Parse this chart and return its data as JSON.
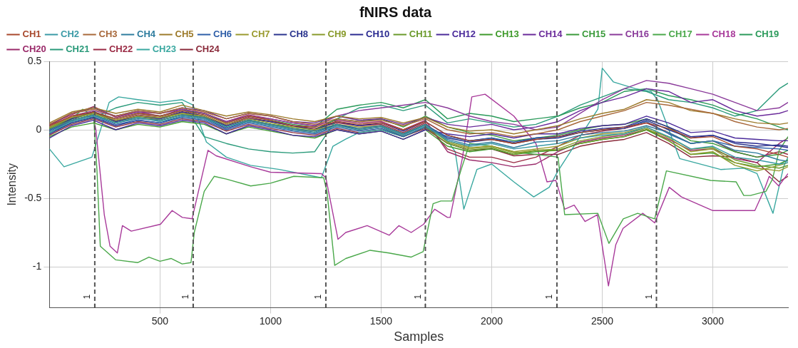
{
  "chart_data": {
    "type": "line",
    "title": "fNIRS data",
    "xlabel": "Samples",
    "ylabel": "Intensity",
    "x": [
      0,
      100,
      200,
      300,
      400,
      500,
      600,
      700,
      800,
      900,
      1000,
      1100,
      1200,
      1300,
      1400,
      1500,
      1600,
      1700,
      1800,
      1900,
      2000,
      2100,
      2200,
      2300,
      2400,
      2500,
      2600,
      2700,
      2800,
      2900,
      3000,
      3100,
      3200,
      3300,
      3340
    ],
    "xlim": [
      0,
      3340
    ],
    "xticks": [
      500,
      1000,
      1500,
      2000,
      2500,
      3000
    ],
    "ylim": [
      -1.3,
      0.5
    ],
    "yticks": [
      -1,
      -0.5,
      0,
      0.5
    ],
    "grid": true,
    "legend": "top",
    "marker": "none",
    "line_style": "solid",
    "ref_lines": [
      {
        "axis": "x",
        "value": 205,
        "color": "#555555",
        "line_style": "dashed"
      },
      {
        "axis": "x",
        "value": 650,
        "color": "#555555",
        "line_style": "dashed"
      },
      {
        "axis": "x",
        "value": 1250,
        "color": "#555555",
        "line_style": "dashed"
      },
      {
        "axis": "x",
        "value": 1700,
        "color": "#555555",
        "line_style": "dashed"
      },
      {
        "axis": "x",
        "value": 2295,
        "color": "#555555",
        "line_style": "dashed"
      },
      {
        "axis": "x",
        "value": 2745,
        "color": "#555555",
        "line_style": "dashed"
      }
    ],
    "annotations": [
      {
        "text": "1",
        "x": 205,
        "y": -1.22
      },
      {
        "text": "1",
        "x": 650,
        "y": -1.22
      },
      {
        "text": "1",
        "x": 1250,
        "y": -1.22
      },
      {
        "text": "1",
        "x": 1700,
        "y": -1.22
      },
      {
        "text": "1",
        "x": 2295,
        "y": -1.22
      },
      {
        "text": "1",
        "x": 2745,
        "y": -1.22
      }
    ],
    "series": [
      {
        "name": "CH1",
        "color": "#a8482c",
        "values": [
          0.03,
          0.1,
          0.13,
          0.08,
          0.12,
          0.1,
          0.14,
          0.11,
          0.05,
          0.1,
          0.07,
          0.03,
          0.02,
          0.06,
          0.04,
          0.05,
          0.0,
          0.06,
          -0.04,
          -0.08,
          -0.07,
          -0.1,
          -0.07,
          -0.05,
          -0.02,
          0.0,
          0.02,
          0.05,
          0.01,
          -0.06,
          -0.05,
          -0.12,
          -0.14,
          -0.18,
          -0.2
        ]
      },
      {
        "name": "CH2",
        "color": "#3a9aa6",
        "values": [
          -0.02,
          0.06,
          0.1,
          0.05,
          0.09,
          0.06,
          0.1,
          0.08,
          0.02,
          0.06,
          0.03,
          0.0,
          -0.02,
          0.03,
          0.0,
          0.02,
          -0.04,
          0.03,
          -0.08,
          -0.12,
          -0.1,
          -0.14,
          -0.12,
          -0.1,
          -0.06,
          -0.04,
          -0.03,
          0.02,
          -0.05,
          -0.14,
          -0.12,
          -0.2,
          -0.22,
          -0.25,
          -0.24
        ]
      },
      {
        "name": "CH3",
        "color": "#a8683a",
        "values": [
          0.04,
          0.12,
          0.15,
          0.1,
          0.14,
          0.12,
          0.16,
          0.13,
          0.08,
          0.12,
          0.1,
          0.06,
          0.04,
          0.08,
          0.06,
          0.07,
          0.03,
          0.08,
          0.0,
          -0.03,
          -0.02,
          -0.05,
          -0.03,
          0.0,
          0.06,
          0.1,
          0.14,
          0.2,
          0.18,
          0.15,
          0.12,
          0.06,
          0.02,
          0.0,
          0.01
        ]
      },
      {
        "name": "CH4",
        "color": "#2e7c9e",
        "values": [
          0.0,
          0.07,
          0.11,
          0.05,
          0.08,
          0.07,
          0.11,
          0.09,
          0.02,
          0.07,
          0.04,
          0.01,
          -0.01,
          0.04,
          0.01,
          0.03,
          -0.03,
          0.04,
          -0.07,
          -0.11,
          -0.09,
          -0.13,
          -0.09,
          -0.08,
          -0.04,
          -0.02,
          -0.01,
          0.03,
          -0.02,
          -0.1,
          -0.08,
          -0.15,
          -0.17,
          -0.22,
          -0.23
        ]
      },
      {
        "name": "CH5",
        "color": "#9c7a2a",
        "values": [
          0.05,
          0.13,
          0.16,
          0.12,
          0.15,
          0.13,
          0.18,
          0.14,
          0.1,
          0.13,
          0.11,
          0.08,
          0.06,
          0.1,
          0.08,
          0.09,
          0.05,
          0.09,
          0.02,
          -0.01,
          0.0,
          -0.03,
          0.0,
          0.03,
          0.08,
          0.12,
          0.15,
          0.22,
          0.2,
          0.14,
          0.12,
          0.08,
          0.05,
          0.04,
          0.05
        ]
      },
      {
        "name": "CH6",
        "color": "#2e5ea8",
        "values": [
          -0.01,
          0.06,
          0.1,
          0.04,
          0.07,
          0.05,
          0.09,
          0.07,
          0.0,
          0.05,
          0.02,
          -0.01,
          -0.03,
          0.02,
          -0.01,
          0.01,
          -0.05,
          0.02,
          -0.05,
          -0.08,
          -0.06,
          -0.09,
          -0.06,
          -0.05,
          -0.02,
          0.0,
          0.02,
          0.06,
          -0.03,
          -0.1,
          -0.08,
          -0.12,
          -0.13,
          -0.14,
          -0.15
        ]
      },
      {
        "name": "CH7",
        "color": "#9a9a2e",
        "values": [
          0.02,
          0.09,
          0.12,
          0.07,
          0.1,
          0.09,
          0.12,
          0.1,
          0.04,
          0.08,
          0.05,
          0.02,
          0.0,
          0.04,
          0.02,
          0.03,
          -0.03,
          0.04,
          -0.08,
          -0.13,
          -0.12,
          -0.16,
          -0.14,
          -0.12,
          -0.06,
          -0.03,
          -0.02,
          0.02,
          -0.06,
          -0.16,
          -0.14,
          -0.24,
          -0.28,
          -0.3,
          -0.27
        ]
      },
      {
        "name": "CH8",
        "color": "#2a348e",
        "values": [
          -0.03,
          0.05,
          0.09,
          0.03,
          0.07,
          0.05,
          0.1,
          0.08,
          0.01,
          0.06,
          0.03,
          0.0,
          -0.02,
          0.04,
          0.0,
          0.02,
          -0.04,
          0.04,
          -0.06,
          -0.09,
          -0.07,
          -0.1,
          -0.07,
          -0.06,
          -0.02,
          0.0,
          0.01,
          0.07,
          0.0,
          -0.06,
          -0.04,
          -0.1,
          -0.12,
          -0.11,
          -0.12
        ]
      },
      {
        "name": "CH9",
        "color": "#889a2a",
        "values": [
          0.01,
          0.07,
          0.11,
          0.05,
          0.09,
          0.07,
          0.11,
          0.09,
          0.02,
          0.07,
          0.04,
          0.01,
          -0.01,
          0.04,
          0.01,
          0.03,
          -0.03,
          0.04,
          -0.09,
          -0.14,
          -0.12,
          -0.17,
          -0.15,
          -0.14,
          -0.08,
          -0.05,
          -0.03,
          0.01,
          -0.08,
          -0.18,
          -0.16,
          -0.26,
          -0.3,
          -0.26,
          -0.24
        ]
      },
      {
        "name": "CH10",
        "color": "#2a2a90",
        "values": [
          0.0,
          0.08,
          0.13,
          0.06,
          0.1,
          0.08,
          0.13,
          0.1,
          0.03,
          0.08,
          0.06,
          0.03,
          0.0,
          0.06,
          0.03,
          0.05,
          -0.01,
          0.06,
          -0.04,
          -0.08,
          -0.06,
          -0.1,
          -0.06,
          -0.05,
          -0.01,
          0.01,
          0.02,
          0.08,
          0.02,
          -0.05,
          -0.04,
          -0.09,
          -0.1,
          -0.12,
          -0.13
        ]
      },
      {
        "name": "CH11",
        "color": "#6a9a2a",
        "values": [
          0.02,
          0.08,
          0.12,
          0.06,
          0.1,
          0.08,
          0.12,
          0.09,
          0.02,
          0.07,
          0.04,
          0.01,
          -0.02,
          0.03,
          0.0,
          0.02,
          -0.05,
          0.02,
          -0.1,
          -0.15,
          -0.13,
          -0.18,
          -0.15,
          -0.15,
          -0.1,
          -0.07,
          -0.05,
          0.0,
          -0.05,
          -0.14,
          -0.13,
          -0.22,
          -0.26,
          -0.28,
          -0.26
        ]
      },
      {
        "name": "CH12",
        "color": "#4a2a9a",
        "values": [
          -0.06,
          0.03,
          0.07,
          0.0,
          0.05,
          0.03,
          0.07,
          0.05,
          -0.03,
          0.03,
          0.0,
          -0.04,
          -0.05,
          0.0,
          -0.03,
          -0.01,
          -0.07,
          0.0,
          -0.03,
          -0.05,
          -0.03,
          -0.06,
          -0.03,
          -0.03,
          0.01,
          0.03,
          0.04,
          0.1,
          0.05,
          -0.02,
          -0.01,
          -0.06,
          -0.07,
          -0.08,
          -0.08
        ]
      },
      {
        "name": "CH13",
        "color": "#3e9a2a",
        "values": [
          -0.05,
          0.02,
          0.05,
          0.0,
          0.04,
          0.02,
          0.06,
          0.04,
          -0.03,
          0.02,
          -0.01,
          -0.04,
          -0.06,
          0.0,
          -0.03,
          -0.01,
          -0.07,
          0.0,
          -0.12,
          -0.16,
          -0.14,
          -0.18,
          -0.16,
          -0.15,
          -0.1,
          -0.07,
          -0.05,
          0.0,
          -0.08,
          -0.18,
          -0.17,
          -0.24,
          -0.27,
          -0.25,
          -0.22
        ]
      },
      {
        "name": "CH14",
        "color": "#6a2a9a",
        "values": [
          0.03,
          0.12,
          0.16,
          0.1,
          0.14,
          0.12,
          0.16,
          0.14,
          0.08,
          0.12,
          0.1,
          0.06,
          0.05,
          0.1,
          0.07,
          0.08,
          0.04,
          0.09,
          0.04,
          0.02,
          0.04,
          0.0,
          0.02,
          0.06,
          0.14,
          0.2,
          0.24,
          0.3,
          0.28,
          0.2,
          0.22,
          0.14,
          0.1,
          0.12,
          0.14
        ]
      },
      {
        "name": "CH15",
        "color": "#3a9a3a",
        "values": [
          0.0,
          0.07,
          0.11,
          0.05,
          0.09,
          0.07,
          0.11,
          0.09,
          0.02,
          0.07,
          0.04,
          0.02,
          0.0,
          0.08,
          0.06,
          0.08,
          0.02,
          0.1,
          0.02,
          -0.02,
          -0.04,
          -0.08,
          -0.06,
          -0.04,
          0.0,
          0.03,
          0.04,
          0.08,
          0.02,
          -0.08,
          -0.1,
          -0.16,
          -0.2,
          -0.18,
          -0.15
        ]
      },
      {
        "name": "CH16",
        "color": "#8a3a9a",
        "values": [
          0.02,
          0.1,
          0.14,
          0.1,
          0.13,
          0.12,
          0.15,
          0.12,
          0.06,
          0.1,
          0.08,
          0.05,
          0.03,
          0.1,
          0.14,
          0.16,
          0.18,
          0.2,
          0.16,
          0.1,
          0.06,
          0.04,
          0.0,
          0.02,
          0.12,
          0.22,
          0.3,
          0.36,
          0.34,
          0.3,
          0.26,
          0.2,
          0.14,
          0.16,
          0.2
        ]
      },
      {
        "name": "CH17",
        "color": "#4aa84a",
        "x": [
          0,
          100,
          150,
          200,
          215,
          230,
          300,
          400,
          450,
          500,
          550,
          600,
          640,
          655,
          700,
          745,
          800,
          910,
          1000,
          1105,
          1240,
          1255,
          1290,
          1340,
          1450,
          1535,
          1635,
          1690,
          1735,
          1770,
          1820,
          1860,
          1900,
          2000,
          2100,
          2200,
          2300,
          2330,
          2480,
          2530,
          2595,
          2660,
          2737,
          2790,
          2990,
          3105,
          3140,
          3170,
          3240,
          3270,
          3300,
          3340
        ],
        "values": [
          0.01,
          0.08,
          0.15,
          0.1,
          -0.3,
          -0.85,
          -0.95,
          -0.97,
          -0.93,
          -0.96,
          -0.94,
          -0.98,
          -0.97,
          -0.75,
          -0.45,
          -0.34,
          -0.36,
          -0.41,
          -0.39,
          -0.34,
          -0.35,
          -0.45,
          -0.99,
          -0.94,
          -0.88,
          -0.9,
          -0.93,
          -0.89,
          -0.54,
          -0.52,
          -0.52,
          -0.3,
          -0.1,
          -0.12,
          -0.16,
          -0.18,
          -0.2,
          -0.62,
          -0.61,
          -0.83,
          -0.65,
          -0.61,
          -0.65,
          -0.3,
          -0.37,
          -0.38,
          -0.48,
          -0.48,
          -0.45,
          -0.36,
          -0.15,
          -0.05
        ]
      },
      {
        "name": "CH18",
        "color": "#a83a9a",
        "x": [
          0,
          100,
          150,
          200,
          210,
          248,
          274,
          307,
          330,
          370,
          502,
          555,
          601,
          645,
          717,
          754,
          910,
          1000,
          1230,
          1250,
          1305,
          1340,
          1437,
          1537,
          1580,
          1636,
          1692,
          1742,
          1800,
          1812,
          1867,
          1910,
          1970,
          2100,
          2200,
          2250,
          2290,
          2330,
          2373,
          2422,
          2478,
          2528,
          2561,
          2594,
          2683,
          2737,
          2803,
          2858,
          3000,
          3190,
          3232,
          3255,
          3298,
          3340
        ],
        "values": [
          0.0,
          0.06,
          0.12,
          0.08,
          0.0,
          -0.62,
          -0.85,
          -0.9,
          -0.7,
          -0.74,
          -0.69,
          -0.59,
          -0.64,
          -0.65,
          -0.15,
          -0.19,
          -0.27,
          -0.31,
          -0.32,
          -0.35,
          -0.8,
          -0.75,
          -0.7,
          -0.77,
          -0.7,
          -0.75,
          -0.69,
          -0.58,
          -0.64,
          -0.64,
          -0.21,
          0.24,
          0.26,
          0.1,
          -0.1,
          -0.38,
          -0.37,
          -0.58,
          -0.55,
          -0.67,
          -0.62,
          -1.14,
          -0.84,
          -0.72,
          -0.61,
          -0.68,
          -0.42,
          -0.49,
          -0.59,
          -0.59,
          -0.44,
          -0.34,
          -0.41,
          -0.32
        ]
      },
      {
        "name": "CH19",
        "color": "#2a9a5a",
        "values": [
          0.01,
          0.08,
          0.13,
          0.08,
          0.12,
          0.1,
          0.14,
          0.12,
          0.05,
          0.1,
          0.07,
          0.04,
          0.02,
          0.15,
          0.18,
          0.2,
          0.16,
          0.22,
          0.08,
          0.12,
          0.1,
          0.06,
          0.08,
          0.1,
          0.16,
          0.2,
          0.28,
          0.3,
          0.25,
          0.22,
          0.18,
          0.12,
          0.08,
          0.02,
          0.0
        ]
      },
      {
        "name": "CH20",
        "color": "#9a2a6a",
        "values": [
          0.04,
          0.11,
          0.17,
          0.09,
          0.13,
          0.1,
          0.15,
          0.12,
          0.06,
          0.11,
          0.08,
          0.05,
          0.03,
          0.07,
          0.05,
          0.06,
          0.0,
          0.07,
          -0.16,
          -0.22,
          -0.24,
          -0.27,
          -0.25,
          -0.16,
          -0.09,
          -0.06,
          -0.04,
          0.0,
          -0.07,
          -0.15,
          -0.14,
          -0.21,
          -0.24,
          -0.1,
          -0.06
        ]
      },
      {
        "name": "CH21",
        "color": "#2a9a7a",
        "values": [
          -0.02,
          0.05,
          0.09,
          0.16,
          0.2,
          0.18,
          0.2,
          -0.05,
          -0.1,
          -0.14,
          -0.16,
          -0.17,
          -0.16,
          0.08,
          0.16,
          0.18,
          0.14,
          0.18,
          0.05,
          0.08,
          0.05,
          0.02,
          0.04,
          0.1,
          0.18,
          0.24,
          0.3,
          0.28,
          0.22,
          0.2,
          0.16,
          0.1,
          0.14,
          0.3,
          0.34
        ]
      },
      {
        "name": "CH22",
        "color": "#9a2a44",
        "values": [
          0.02,
          0.09,
          0.13,
          0.07,
          0.11,
          0.09,
          0.13,
          0.1,
          0.04,
          0.09,
          0.06,
          0.03,
          0.01,
          0.05,
          0.03,
          0.04,
          -0.02,
          0.05,
          -0.14,
          -0.2,
          -0.2,
          -0.24,
          -0.2,
          -0.12,
          -0.04,
          -0.01,
          0.01,
          0.05,
          -0.02,
          -0.1,
          -0.08,
          -0.16,
          -0.2,
          -0.16,
          -0.18
        ]
      },
      {
        "name": "CH23",
        "color": "#3aa8a0",
        "x": [
          0,
          66,
          192,
          270,
          313,
          400,
          500,
          600,
          650,
          710,
          800,
          910,
          1040,
          1230,
          1282,
          1338,
          1400,
          1500,
          1600,
          1700,
          1800,
          1835,
          1874,
          1933,
          2000,
          2100,
          2190,
          2260,
          2300,
          2400,
          2480,
          2500,
          2550,
          2650,
          2720,
          2750,
          2850,
          3035,
          3140,
          3200,
          3272,
          3320,
          3340
        ],
        "values": [
          -0.14,
          -0.27,
          -0.2,
          0.2,
          0.24,
          0.22,
          0.2,
          0.22,
          0.18,
          -0.09,
          -0.2,
          -0.26,
          -0.29,
          -0.35,
          -0.12,
          -0.07,
          -0.02,
          0.0,
          -0.05,
          0.02,
          -0.08,
          -0.16,
          -0.58,
          -0.29,
          -0.25,
          -0.38,
          -0.49,
          -0.42,
          -0.3,
          -0.05,
          0.15,
          0.45,
          0.35,
          0.3,
          0.28,
          0.22,
          -0.21,
          -0.29,
          -0.28,
          -0.32,
          -0.61,
          -0.27,
          -0.2
        ]
      },
      {
        "name": "CH24",
        "color": "#8a2a3a",
        "values": [
          -0.04,
          0.04,
          0.08,
          0.02,
          0.06,
          0.04,
          0.08,
          0.06,
          -0.01,
          0.04,
          0.01,
          -0.02,
          -0.04,
          0.01,
          -0.02,
          0.0,
          -0.05,
          0.01,
          -0.1,
          -0.15,
          -0.14,
          -0.19,
          -0.18,
          -0.18,
          -0.12,
          -0.09,
          -0.07,
          -0.02,
          -0.1,
          -0.2,
          -0.19,
          -0.2,
          -0.24,
          -0.38,
          -0.34
        ]
      }
    ]
  }
}
